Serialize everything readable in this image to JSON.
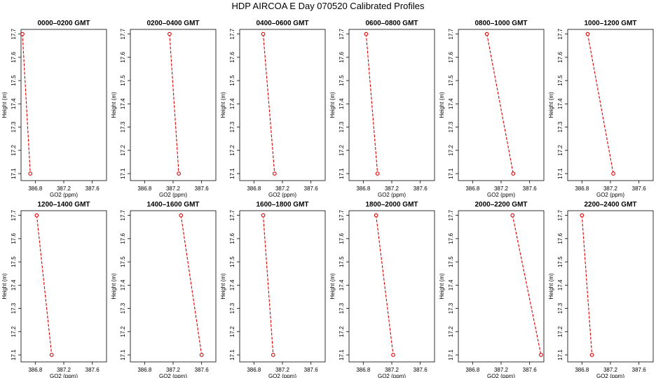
{
  "title": "HDP  AIRCOA E  Day 070520  Calibrated Profiles",
  "series_color": "#dd0000",
  "chart_data": {
    "type": "line",
    "xlabel": "GO2 (ppm)",
    "ylabel": "Height (m)",
    "xlim": [
      386.6,
      387.8
    ],
    "ylim": [
      17.07,
      17.72
    ],
    "xticks": [
      386.8,
      387.2,
      387.6
    ],
    "xtick_labels": [
      "386.8",
      "387.2",
      "387.6"
    ],
    "yticks": [
      17.1,
      17.2,
      17.3,
      17.4,
      17.5,
      17.6,
      17.7
    ],
    "ytick_labels": [
      "17.1",
      "17.2",
      "17.3",
      "17.4",
      "17.5",
      "17.6",
      "17.7"
    ],
    "panels": [
      {
        "title": "0000–0200 GMT",
        "points": [
          {
            "x": 386.62,
            "y": 17.7
          },
          {
            "x": 386.73,
            "y": 17.1
          }
        ]
      },
      {
        "title": "0200–0400 GMT",
        "points": [
          {
            "x": 387.15,
            "y": 17.7
          },
          {
            "x": 387.28,
            "y": 17.1
          }
        ]
      },
      {
        "title": "0400–0600 GMT",
        "points": [
          {
            "x": 386.93,
            "y": 17.7
          },
          {
            "x": 387.09,
            "y": 17.1
          }
        ]
      },
      {
        "title": "0600–0800 GMT",
        "points": [
          {
            "x": 386.84,
            "y": 17.7
          },
          {
            "x": 387.0,
            "y": 17.1
          }
        ]
      },
      {
        "title": "0800–1000 GMT",
        "points": [
          {
            "x": 387.0,
            "y": 17.7
          },
          {
            "x": 387.37,
            "y": 17.1
          }
        ]
      },
      {
        "title": "1000–1200 GMT",
        "points": [
          {
            "x": 386.88,
            "y": 17.7
          },
          {
            "x": 387.24,
            "y": 17.1
          }
        ]
      },
      {
        "title": "1200–1400 GMT",
        "points": [
          {
            "x": 386.82,
            "y": 17.7
          },
          {
            "x": 387.03,
            "y": 17.1
          }
        ]
      },
      {
        "title": "1400–1600 GMT",
        "points": [
          {
            "x": 387.31,
            "y": 17.7
          },
          {
            "x": 387.6,
            "y": 17.1
          }
        ]
      },
      {
        "title": "1600–1800 GMT",
        "points": [
          {
            "x": 386.93,
            "y": 17.7
          },
          {
            "x": 387.07,
            "y": 17.1
          }
        ]
      },
      {
        "title": "1800–2000 GMT",
        "points": [
          {
            "x": 386.98,
            "y": 17.7
          },
          {
            "x": 387.22,
            "y": 17.1
          }
        ]
      },
      {
        "title": "2000–2200 GMT",
        "points": [
          {
            "x": 387.36,
            "y": 17.7
          },
          {
            "x": 387.76,
            "y": 17.1
          }
        ]
      },
      {
        "title": "2200–2400 GMT",
        "points": [
          {
            "x": 386.8,
            "y": 17.7
          },
          {
            "x": 386.94,
            "y": 17.1
          }
        ]
      }
    ]
  }
}
